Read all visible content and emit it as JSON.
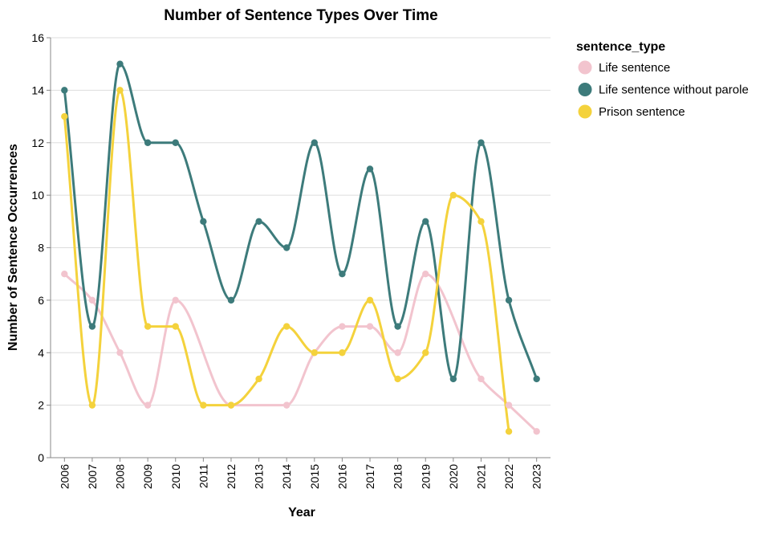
{
  "chart_data": {
    "type": "line",
    "title": "Number of Sentence Types Over Time",
    "xlabel": "Year",
    "ylabel": "Number of Sentence Occurrences",
    "ylim": [
      0,
      16
    ],
    "yticks": [
      0,
      2,
      4,
      6,
      8,
      10,
      12,
      14,
      16
    ],
    "grid": true,
    "legend_title": "sentence_type",
    "legend_position": "right",
    "x": [
      "2006",
      "2007",
      "2008",
      "2009",
      "2010",
      "2011",
      "2012",
      "2013",
      "2014",
      "2015",
      "2016",
      "2017",
      "2018",
      "2019",
      "2020",
      "2021",
      "2022",
      "2023"
    ],
    "series": [
      {
        "name": "Life sentence",
        "color": "#f2c4ce",
        "values": [
          7,
          6,
          4,
          2,
          6,
          null,
          2,
          null,
          2,
          4,
          5,
          5,
          4,
          7,
          null,
          3,
          2,
          1
        ]
      },
      {
        "name": "Life sentence without parole",
        "color": "#3d7b7b",
        "values": [
          14,
          5,
          15,
          12,
          12,
          9,
          6,
          9,
          8,
          12,
          7,
          11,
          5,
          9,
          3,
          12,
          6,
          3
        ]
      },
      {
        "name": "Prison sentence",
        "color": "#f4d23c",
        "values": [
          13,
          2,
          14,
          5,
          5,
          2,
          2,
          3,
          5,
          4,
          4,
          6,
          3,
          4,
          10,
          9,
          1,
          null
        ]
      }
    ]
  }
}
